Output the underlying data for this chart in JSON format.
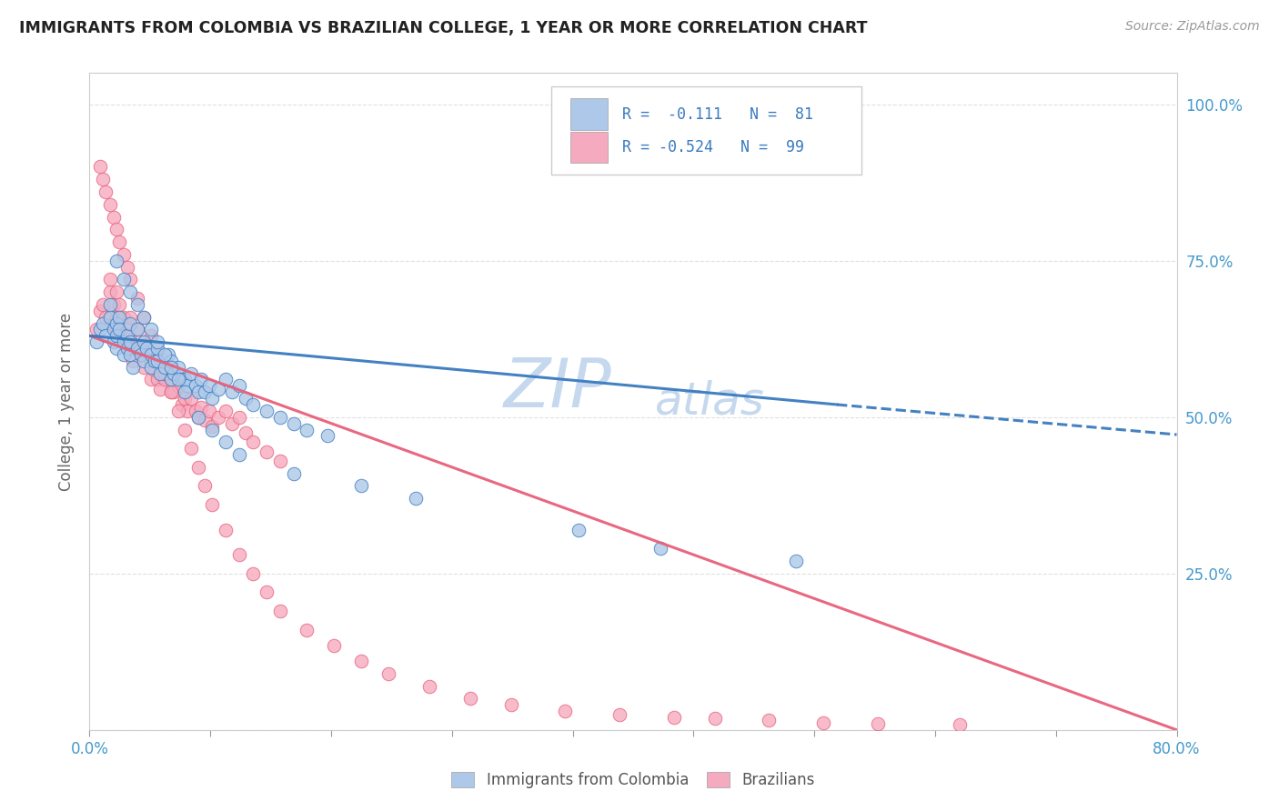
{
  "title": "IMMIGRANTS FROM COLOMBIA VS BRAZILIAN COLLEGE, 1 YEAR OR MORE CORRELATION CHART",
  "source_text": "Source: ZipAtlas.com",
  "ylabel": "College, 1 year or more",
  "xmin": 0.0,
  "xmax": 0.8,
  "ymin": 0.0,
  "ymax": 1.05,
  "series1_color": "#adc8e8",
  "series2_color": "#f5aabf",
  "trendline1_color": "#3a7abf",
  "trendline2_color": "#e8607a",
  "watermark_zip": "ZIP",
  "watermark_atlas": "atlas",
  "watermark_color": "#c5d8ee",
  "background_color": "#ffffff",
  "grid_color": "#dddddd",
  "title_color": "#222222",
  "axis_label_color": "#4499cc",
  "series1_name": "Immigrants from Colombia",
  "series2_name": "Brazilians",
  "colombia_x": [
    0.005,
    0.008,
    0.01,
    0.012,
    0.015,
    0.015,
    0.018,
    0.018,
    0.02,
    0.02,
    0.02,
    0.022,
    0.022,
    0.025,
    0.025,
    0.028,
    0.028,
    0.03,
    0.03,
    0.03,
    0.032,
    0.035,
    0.035,
    0.038,
    0.04,
    0.04,
    0.042,
    0.045,
    0.045,
    0.048,
    0.05,
    0.05,
    0.052,
    0.055,
    0.058,
    0.06,
    0.06,
    0.062,
    0.065,
    0.068,
    0.07,
    0.072,
    0.075,
    0.078,
    0.08,
    0.082,
    0.085,
    0.088,
    0.09,
    0.095,
    0.1,
    0.105,
    0.11,
    0.115,
    0.12,
    0.13,
    0.14,
    0.15,
    0.16,
    0.175,
    0.02,
    0.025,
    0.03,
    0.035,
    0.04,
    0.045,
    0.05,
    0.055,
    0.06,
    0.065,
    0.07,
    0.08,
    0.09,
    0.1,
    0.11,
    0.15,
    0.2,
    0.24,
    0.36,
    0.42,
    0.52
  ],
  "colombia_y": [
    0.62,
    0.64,
    0.65,
    0.63,
    0.66,
    0.68,
    0.64,
    0.62,
    0.65,
    0.63,
    0.61,
    0.66,
    0.64,
    0.62,
    0.6,
    0.63,
    0.61,
    0.65,
    0.62,
    0.6,
    0.58,
    0.64,
    0.61,
    0.6,
    0.62,
    0.59,
    0.61,
    0.6,
    0.58,
    0.59,
    0.61,
    0.59,
    0.57,
    0.58,
    0.6,
    0.56,
    0.59,
    0.57,
    0.58,
    0.56,
    0.56,
    0.55,
    0.57,
    0.55,
    0.54,
    0.56,
    0.54,
    0.55,
    0.53,
    0.545,
    0.56,
    0.54,
    0.55,
    0.53,
    0.52,
    0.51,
    0.5,
    0.49,
    0.48,
    0.47,
    0.75,
    0.72,
    0.7,
    0.68,
    0.66,
    0.64,
    0.62,
    0.6,
    0.58,
    0.56,
    0.54,
    0.5,
    0.48,
    0.46,
    0.44,
    0.41,
    0.39,
    0.37,
    0.32,
    0.29,
    0.27
  ],
  "brazil_x": [
    0.005,
    0.008,
    0.01,
    0.012,
    0.015,
    0.015,
    0.018,
    0.018,
    0.02,
    0.02,
    0.02,
    0.022,
    0.022,
    0.025,
    0.025,
    0.028,
    0.028,
    0.03,
    0.03,
    0.03,
    0.032,
    0.035,
    0.035,
    0.038,
    0.04,
    0.04,
    0.042,
    0.045,
    0.045,
    0.048,
    0.05,
    0.05,
    0.052,
    0.055,
    0.058,
    0.06,
    0.06,
    0.062,
    0.065,
    0.068,
    0.07,
    0.072,
    0.075,
    0.078,
    0.08,
    0.082,
    0.085,
    0.088,
    0.09,
    0.095,
    0.1,
    0.105,
    0.11,
    0.115,
    0.12,
    0.13,
    0.14,
    0.008,
    0.01,
    0.012,
    0.015,
    0.018,
    0.02,
    0.022,
    0.025,
    0.028,
    0.03,
    0.035,
    0.04,
    0.045,
    0.05,
    0.055,
    0.06,
    0.065,
    0.07,
    0.075,
    0.08,
    0.085,
    0.09,
    0.1,
    0.11,
    0.12,
    0.13,
    0.14,
    0.16,
    0.18,
    0.2,
    0.22,
    0.25,
    0.28,
    0.31,
    0.35,
    0.39,
    0.43,
    0.46,
    0.5,
    0.54,
    0.58,
    0.64
  ],
  "brazil_y": [
    0.64,
    0.67,
    0.68,
    0.66,
    0.7,
    0.72,
    0.65,
    0.68,
    0.7,
    0.66,
    0.64,
    0.68,
    0.65,
    0.66,
    0.63,
    0.65,
    0.62,
    0.66,
    0.63,
    0.61,
    0.59,
    0.64,
    0.61,
    0.6,
    0.62,
    0.58,
    0.6,
    0.59,
    0.56,
    0.575,
    0.59,
    0.56,
    0.545,
    0.56,
    0.57,
    0.54,
    0.56,
    0.54,
    0.55,
    0.52,
    0.53,
    0.51,
    0.53,
    0.51,
    0.5,
    0.515,
    0.495,
    0.51,
    0.485,
    0.5,
    0.51,
    0.49,
    0.5,
    0.475,
    0.46,
    0.445,
    0.43,
    0.9,
    0.88,
    0.86,
    0.84,
    0.82,
    0.8,
    0.78,
    0.76,
    0.74,
    0.72,
    0.69,
    0.66,
    0.63,
    0.6,
    0.57,
    0.54,
    0.51,
    0.48,
    0.45,
    0.42,
    0.39,
    0.36,
    0.32,
    0.28,
    0.25,
    0.22,
    0.19,
    0.16,
    0.135,
    0.11,
    0.09,
    0.07,
    0.05,
    0.04,
    0.03,
    0.025,
    0.02,
    0.018,
    0.015,
    0.012,
    0.01,
    0.008
  ],
  "trendline1_x0": 0.0,
  "trendline1_y0": 0.63,
  "trendline1_x1": 0.55,
  "trendline1_y1": 0.52,
  "trendline1_dash_x0": 0.55,
  "trendline1_dash_y0": 0.52,
  "trendline1_dash_x1": 0.8,
  "trendline1_dash_y1": 0.472,
  "trendline2_x0": 0.0,
  "trendline2_y0": 0.63,
  "trendline2_x1": 0.8,
  "trendline2_y1": 0.0
}
